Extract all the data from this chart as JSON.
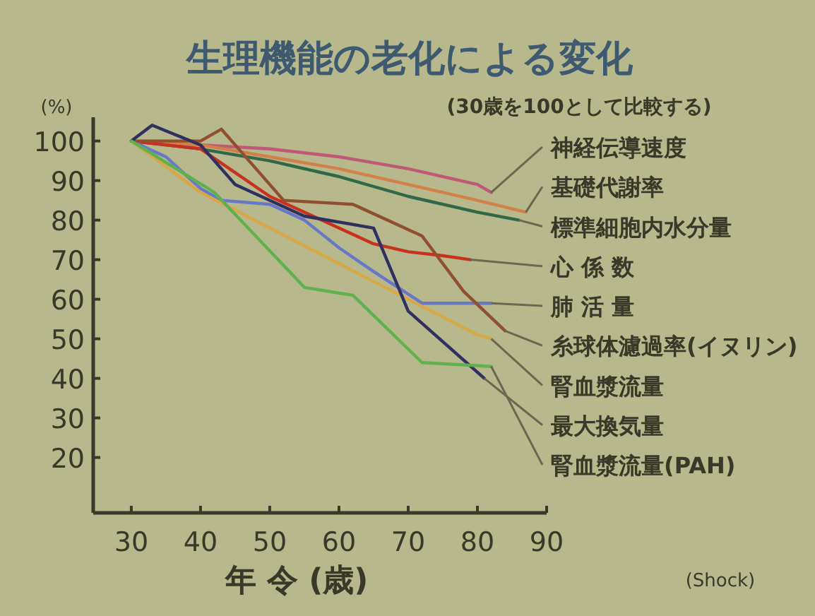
{
  "chart_data": {
    "type": "line",
    "title": "生理機能の老化による変化",
    "subtitle": "(30歳を100として比較する)",
    "xlabel": "年 令 (歳)",
    "ylabel": "(%)",
    "xlim": [
      24.5,
      90
    ],
    "ylim": [
      6,
      106
    ],
    "xticks": [
      30,
      40,
      50,
      60,
      70,
      80,
      90
    ],
    "yticks": [
      20,
      30,
      40,
      50,
      60,
      70,
      80,
      90,
      100
    ],
    "legend": "right",
    "grid": false,
    "marker": "none",
    "line_style": "solid",
    "annotations": [
      "(Shock)"
    ],
    "series": [
      {
        "name": "神経伝導速度",
        "color": "#c05878",
        "x": [
          30,
          40,
          50,
          60,
          70,
          80,
          82
        ],
        "values": [
          100,
          99,
          98,
          96,
          93,
          89,
          87
        ]
      },
      {
        "name": "基礎代謝率",
        "color": "#d08048",
        "x": [
          30,
          40,
          50,
          60,
          70,
          80,
          87
        ],
        "values": [
          100,
          99,
          96,
          93,
          89,
          85,
          82
        ]
      },
      {
        "name": "標準細胞内水分量",
        "color": "#306848",
        "x": [
          30,
          40,
          50,
          60,
          70,
          80,
          86
        ],
        "values": [
          100,
          98,
          95,
          91,
          86,
          82,
          80
        ]
      },
      {
        "name": "心 係 数",
        "color": "#c83020",
        "x": [
          30,
          40,
          45,
          50,
          60,
          65,
          70,
          75,
          79
        ],
        "values": [
          100,
          98,
          92,
          86,
          78,
          74,
          72,
          71,
          70
        ]
      },
      {
        "name": "肺 活 量",
        "color": "#6878c8",
        "x": [
          30,
          35,
          40,
          43,
          50,
          55,
          60,
          65,
          72,
          82
        ],
        "values": [
          100,
          96,
          88,
          85,
          84,
          80,
          73,
          67,
          59,
          59
        ]
      },
      {
        "name": "糸球体濾過率(イヌリン)",
        "color": "#905030",
        "x": [
          30,
          40,
          43,
          47,
          52,
          62,
          72,
          78,
          84
        ],
        "values": [
          100,
          100,
          103,
          95,
          85,
          84,
          76,
          62,
          52
        ]
      },
      {
        "name": "腎血漿流量",
        "color": "#d8a848",
        "x": [
          30,
          40,
          50,
          60,
          70,
          80,
          82
        ],
        "values": [
          100,
          87,
          78,
          69,
          60,
          51,
          50
        ]
      },
      {
        "name": "最大換気量",
        "color": "#303060",
        "x": [
          30,
          33,
          40,
          45,
          55,
          65,
          70,
          81
        ],
        "values": [
          100,
          104,
          99,
          89,
          81,
          78,
          57,
          40
        ]
      },
      {
        "name": "腎血漿流量(PAH)",
        "color": "#60b050",
        "x": [
          30,
          42,
          55,
          62,
          72,
          82
        ],
        "values": [
          100,
          87,
          63,
          61,
          44,
          43
        ]
      }
    ]
  }
}
